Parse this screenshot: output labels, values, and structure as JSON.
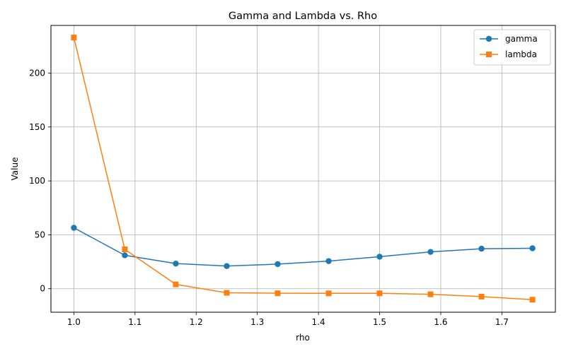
{
  "chart_data": {
    "type": "line",
    "title": "Gamma and Lambda vs. Rho",
    "xlabel": "rho",
    "ylabel": "Value",
    "xlim": [
      0.9625,
      1.7875
    ],
    "ylim": [
      -21.8,
      244.2
    ],
    "xticks": [
      1.0,
      1.1,
      1.2,
      1.3,
      1.4,
      1.5,
      1.6,
      1.7
    ],
    "xtick_labels": [
      "1.0",
      "1.1",
      "1.2",
      "1.3",
      "1.4",
      "1.5",
      "1.6",
      "1.7"
    ],
    "yticks": [
      0,
      50,
      100,
      150,
      200
    ],
    "ytick_labels": [
      "0",
      "50",
      "100",
      "150",
      "200"
    ],
    "grid": true,
    "legend_position": "top-right",
    "x": [
      1.0,
      1.0833,
      1.1667,
      1.25,
      1.3333,
      1.4167,
      1.5,
      1.5833,
      1.6667,
      1.75
    ],
    "series": [
      {
        "name": "gamma",
        "color": "#1f77b4",
        "marker": "circle",
        "values": [
          56.5,
          31.0,
          23.3,
          21.0,
          22.8,
          25.6,
          29.7,
          34.1,
          37.1,
          37.5
        ]
      },
      {
        "name": "lambda",
        "color": "#ff7f0e",
        "marker": "square",
        "values": [
          233.0,
          36.5,
          4.0,
          -3.8,
          -4.2,
          -4.3,
          -4.3,
          -5.2,
          -7.3,
          -10.2
        ]
      }
    ]
  }
}
